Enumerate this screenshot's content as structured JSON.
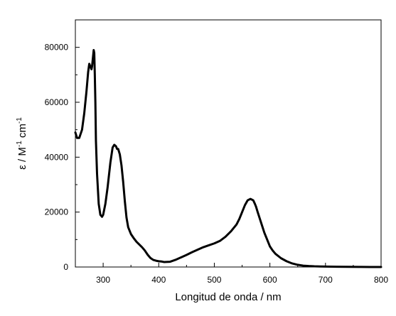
{
  "chart_data": {
    "type": "line",
    "xlabel": "Longitud de onda / nm",
    "ylabel": {
      "parts": [
        "ε / M",
        "-1",
        " cm",
        "-1"
      ]
    },
    "xlim": [
      250,
      800
    ],
    "ylim": [
      0,
      90000
    ],
    "xticks": [
      300,
      400,
      500,
      600,
      700,
      800
    ],
    "yticks": [
      0,
      20000,
      40000,
      60000,
      80000
    ],
    "xticklabels": [
      "300",
      "400",
      "500",
      "600",
      "700",
      "800"
    ],
    "yticklabels": [
      "0",
      "20000",
      "40000",
      "60000",
      "80000"
    ],
    "grid": false,
    "legend": "none",
    "line_color": "#000000",
    "series": [
      {
        "x": [
          250,
          253,
          257,
          262,
          266,
          270,
          273,
          275,
          277,
          279,
          280,
          281,
          283,
          284,
          285,
          286,
          287,
          289,
          292,
          295,
          298,
          300,
          304,
          308,
          313,
          317,
          320,
          323,
          325,
          327,
          330,
          333,
          336,
          339,
          342,
          345,
          350,
          355,
          360,
          365,
          370,
          375,
          380,
          385,
          390,
          395,
          400,
          405,
          410,
          420,
          430,
          440,
          450,
          460,
          470,
          480,
          490,
          500,
          510,
          520,
          530,
          540,
          545,
          550,
          555,
          560,
          565,
          570,
          573,
          575,
          578,
          582,
          586,
          590,
          595,
          600,
          605,
          610,
          620,
          630,
          640,
          650,
          660,
          670,
          680,
          690,
          700,
          720,
          740,
          760,
          780,
          800
        ],
        "y": [
          49000,
          47000,
          47000,
          50000,
          56000,
          64000,
          71000,
          74000,
          73000,
          72000,
          73000,
          75000,
          79000,
          78000,
          70000,
          60000,
          46000,
          34000,
          23000,
          19000,
          18300,
          19000,
          23000,
          29000,
          38000,
          43500,
          44500,
          44000,
          43000,
          43000,
          41000,
          37000,
          31000,
          24000,
          18000,
          14500,
          12000,
          10500,
          9200,
          8200,
          7200,
          6000,
          4500,
          3300,
          2600,
          2300,
          2100,
          2000,
          1800,
          1900,
          2600,
          3500,
          4400,
          5400,
          6300,
          7200,
          7900,
          8600,
          9500,
          11000,
          13000,
          15500,
          17500,
          20000,
          22500,
          24300,
          24800,
          24300,
          23000,
          22000,
          20000,
          17500,
          15000,
          12500,
          10000,
          7500,
          6000,
          4800,
          3200,
          2100,
          1300,
          800,
          500,
          350,
          250,
          200,
          150,
          100,
          60,
          30,
          10,
          0
        ]
      }
    ]
  }
}
